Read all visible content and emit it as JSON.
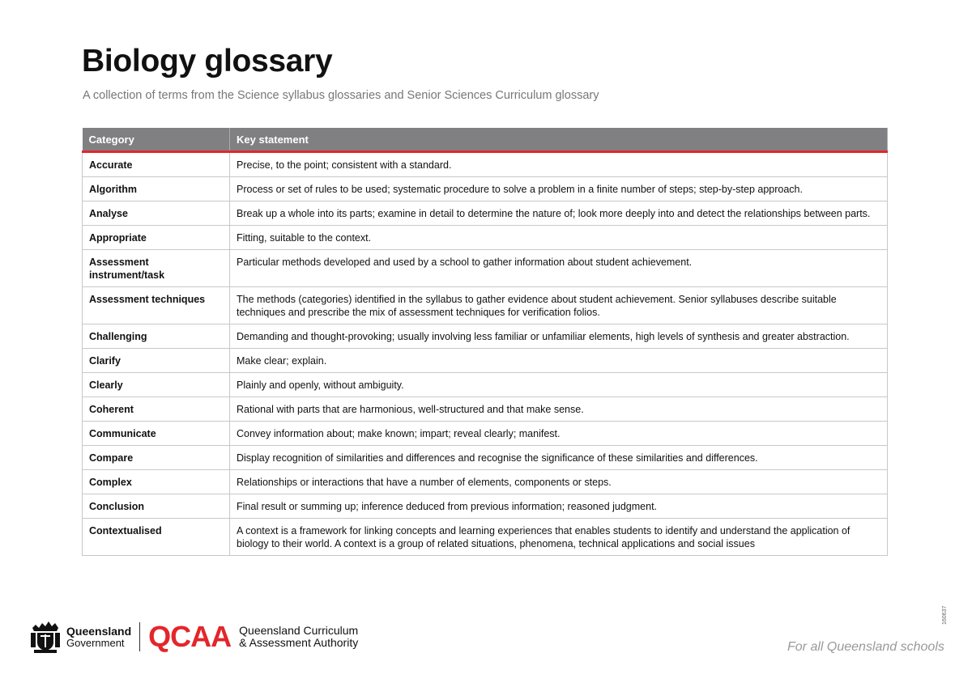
{
  "title": "Biology glossary",
  "subtitle": "A collection of terms from the Science syllabus glossaries and Senior Sciences Curriculum glossary",
  "table": {
    "headers": [
      "Category",
      "Key statement"
    ],
    "rows": [
      {
        "term": "Accurate",
        "def": "Precise, to the point; consistent with a standard."
      },
      {
        "term": "Algorithm",
        "def": "Process or set of rules to be used; systematic procedure to solve a problem in a finite number of steps; step-by-step approach."
      },
      {
        "term": "Analyse",
        "def": "Break up a whole into its parts; examine in detail to determine the nature of; look more deeply into and detect the relationships between parts."
      },
      {
        "term": "Appropriate",
        "def": "Fitting, suitable to the context."
      },
      {
        "term": "Assessment instrument/task",
        "def": "Particular methods developed and used by a school to gather information about student achievement."
      },
      {
        "term": "Assessment techniques",
        "def": "The methods (categories) identified in the syllabus to gather evidence about student achievement. Senior syllabuses describe suitable techniques and prescribe the mix of assessment techniques for verification folios."
      },
      {
        "term": "Challenging",
        "def": "Demanding and thought-provoking; usually involving less familiar or unfamiliar elements, high levels of synthesis and greater abstraction."
      },
      {
        "term": "Clarify",
        "def": "Make clear; explain."
      },
      {
        "term": "Clearly",
        "def": "Plainly and openly, without ambiguity."
      },
      {
        "term": "Coherent",
        "def": "Rational with parts that are harmonious, well-structured and that make sense."
      },
      {
        "term": "Communicate",
        "def": "Convey information about; make known; impart; reveal clearly; manifest."
      },
      {
        "term": "Compare",
        "def": "Display recognition of similarities and differences and recognise the significance of these similarities and differences."
      },
      {
        "term": "Complex",
        "def": "Relationships or interactions that have a number of elements, components or steps."
      },
      {
        "term": "Conclusion",
        "def": "Final result or summing up; inference deduced from previous information; reasoned judgment."
      },
      {
        "term": "Contextualised",
        "def": "A context is a framework for linking concepts and learning experiences that enables students to identify and understand the application of biology to their world. A context is a group of related situations, phenomena, technical applications and social issues"
      }
    ]
  },
  "footer": {
    "qg_line1": "Queensland",
    "qg_line2": "Government",
    "qcaa": "QCAA",
    "qcaa_line1": "Queensland Curriculum",
    "qcaa_line2": "& Assessment Authority",
    "tagline": "For all Queensland schools",
    "code": "160637"
  },
  "colors": {
    "header_bg": "#808083",
    "accent": "#e3262b"
  }
}
